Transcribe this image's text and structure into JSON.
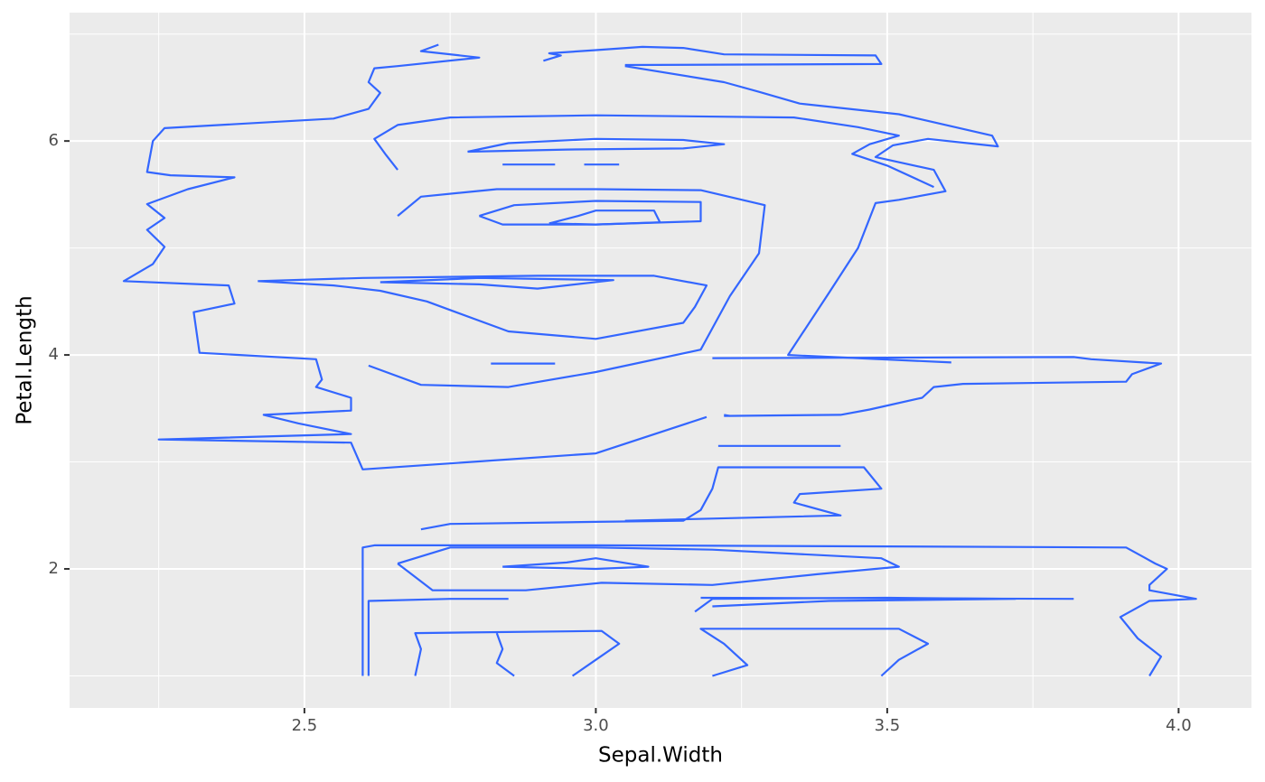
{
  "chart_data": {
    "type": "line",
    "x_label": "Sepal.Width",
    "y_label": "Petal.Length",
    "color": "#3366ff",
    "grid": true,
    "xlim": [
      2.097,
      4.125
    ],
    "ylim": [
      0.7,
      7.2
    ],
    "xticks": [
      2.5,
      {
        "value": 3,
        "label": "3.0"
      },
      3.5,
      {
        "value": 4,
        "label": "4.0"
      }
    ],
    "yticks": [
      2,
      4,
      6
    ],
    "xminor": [
      2.25,
      2.75,
      3.25,
      3.75
    ],
    "yminor": [
      1,
      3,
      5,
      7
    ],
    "series": [
      {
        "x": [
          2.73,
          2.7,
          2.8,
          2.66,
          2.62,
          2.61,
          2.63,
          2.61,
          2.55,
          2.26,
          2.24,
          2.23,
          2.27,
          2.38,
          2.3,
          2.23,
          2.26,
          2.23,
          2.26,
          2.24,
          2.19,
          2.37,
          2.38,
          2.31,
          2.32,
          2.52,
          2.53,
          2.52,
          2.58,
          2.58,
          2.43,
          2.49,
          2.58,
          2.25,
          2.58,
          2.6,
          3.0,
          3.19
        ],
        "values": [
          6.9,
          6.84,
          6.78,
          6.7,
          6.68,
          6.55,
          6.45,
          6.3,
          6.21,
          6.12,
          6.0,
          5.71,
          5.68,
          5.66,
          5.55,
          5.41,
          5.28,
          5.17,
          5.01,
          4.85,
          4.69,
          4.65,
          4.48,
          4.4,
          4.02,
          3.96,
          3.77,
          3.7,
          3.6,
          3.48,
          3.44,
          3.36,
          3.26,
          3.21,
          3.18,
          2.93,
          3.08,
          3.42
        ]
      },
      {
        "x": [
          3.2,
          3.82,
          3.85,
          3.97,
          3.92,
          3.91,
          3.63,
          3.58,
          3.56,
          3.47,
          3.42,
          3.22
        ],
        "values": [
          3.97,
          3.98,
          3.96,
          3.92,
          3.82,
          3.75,
          3.73,
          3.7,
          3.6,
          3.49,
          3.44,
          3.43
        ]
      },
      {
        "x": [
          2.91,
          2.94,
          2.92,
          3.0,
          3.08,
          3.15,
          3.22,
          3.48,
          3.49,
          3.05
        ],
        "values": [
          6.75,
          6.8,
          6.82,
          6.85,
          6.88,
          6.87,
          6.81,
          6.8,
          6.72,
          6.71
        ]
      },
      {
        "x": [
          3.05,
          3.22,
          3.28,
          3.35,
          3.52,
          3.68,
          3.69,
          3.57,
          3.51,
          3.48,
          3.58,
          3.6,
          3.52,
          3.48,
          3.45,
          3.4,
          3.33,
          3.61
        ],
        "values": [
          6.7,
          6.55,
          6.46,
          6.35,
          6.25,
          6.05,
          5.95,
          6.02,
          5.96,
          5.85,
          5.73,
          5.53,
          5.45,
          5.42,
          5.0,
          4.58,
          4.0,
          3.93
        ]
      },
      {
        "x": [
          2.66,
          2.64,
          2.62,
          2.66,
          2.75,
          3.0,
          3.34,
          3.45,
          3.52,
          3.47,
          3.44,
          3.5,
          3.58
        ],
        "values": [
          5.73,
          5.87,
          6.02,
          6.15,
          6.22,
          6.24,
          6.22,
          6.13,
          6.05,
          5.97,
          5.88,
          5.77,
          5.57
        ]
      },
      {
        "x": [
          2.66,
          2.7,
          2.83,
          3.0,
          3.18,
          3.29,
          3.28,
          3.23,
          3.2,
          3.18,
          3.0,
          2.85,
          2.7,
          2.61
        ],
        "values": [
          5.3,
          5.48,
          5.55,
          5.55,
          5.54,
          5.4,
          4.95,
          4.55,
          4.25,
          4.05,
          3.84,
          3.7,
          3.72,
          3.9
        ]
      },
      {
        "x": [
          2.78,
          2.85,
          3.0,
          3.15,
          3.22,
          3.15,
          2.95,
          2.78
        ],
        "values": [
          5.9,
          5.98,
          6.02,
          6.01,
          5.97,
          5.93,
          5.92,
          5.9
        ]
      },
      {
        "x": [
          2.84,
          2.93
        ],
        "values": [
          5.78,
          5.78
        ]
      },
      {
        "x": [
          2.98,
          3.04
        ],
        "values": [
          5.78,
          5.78
        ]
      },
      {
        "x": [
          2.92,
          2.97,
          3.0,
          3.1,
          3.11,
          3.0,
          2.92
        ],
        "values": [
          5.23,
          5.3,
          5.35,
          5.35,
          5.24,
          5.22,
          5.23
        ]
      },
      {
        "x": [
          2.8,
          2.86,
          3.0,
          3.18,
          3.18,
          3.0,
          2.84,
          2.8
        ],
        "values": [
          5.3,
          5.4,
          5.44,
          5.43,
          5.25,
          5.22,
          5.22,
          5.3
        ]
      },
      {
        "x": [
          2.42,
          2.6,
          2.75,
          2.9,
          3.1,
          3.19,
          3.17,
          3.15,
          3.0,
          2.85,
          2.76,
          2.71,
          2.63,
          2.55,
          2.42
        ],
        "values": [
          4.69,
          4.72,
          4.73,
          4.74,
          4.74,
          4.65,
          4.45,
          4.3,
          4.15,
          4.22,
          4.4,
          4.5,
          4.6,
          4.65,
          4.69
        ]
      },
      {
        "x": [
          2.63,
          2.8,
          3.03,
          2.9,
          2.8,
          2.63
        ],
        "values": [
          4.68,
          4.72,
          4.7,
          4.62,
          4.66,
          4.68
        ]
      },
      {
        "x": [
          2.82,
          2.93
        ],
        "values": [
          3.92,
          3.92
        ]
      },
      {
        "x": [
          3.22,
          3.23
        ],
        "values": [
          3.44,
          3.43
        ]
      },
      {
        "x": [
          3.21,
          3.42
        ],
        "values": [
          3.15,
          3.15
        ]
      },
      {
        "x": [
          2.6,
          2.6,
          2.62,
          3.0,
          3.5,
          3.91,
          3.96,
          3.98,
          3.95,
          3.95,
          4.03,
          3.95,
          3.9,
          3.93,
          3.97,
          3.95
        ],
        "values": [
          1.0,
          2.2,
          2.22,
          2.22,
          2.21,
          2.2,
          2.05,
          2.0,
          1.85,
          1.8,
          1.72,
          1.7,
          1.55,
          1.35,
          1.18,
          1.0
        ]
      },
      {
        "x": [
          2.61,
          2.61,
          2.75,
          2.85
        ],
        "values": [
          1.0,
          1.7,
          1.72,
          1.72
        ]
      },
      {
        "x": [
          2.69,
          2.7,
          2.69,
          3.01,
          3.04,
          3.0,
          2.96
        ],
        "values": [
          1.0,
          1.25,
          1.4,
          1.42,
          1.3,
          1.15,
          1.0
        ]
      },
      {
        "x": [
          2.86,
          2.83,
          2.84,
          2.83
        ],
        "values": [
          1.0,
          1.12,
          1.25,
          1.4
        ]
      },
      {
        "x": [
          3.2,
          3.26,
          3.22,
          3.18,
          3.52,
          3.57,
          3.52,
          3.49
        ],
        "values": [
          1.0,
          1.1,
          1.3,
          1.44,
          1.44,
          1.3,
          1.15,
          1.0
        ]
      },
      {
        "x": [
          3.17,
          3.2,
          3.5,
          3.72,
          3.4,
          3.2
        ],
        "values": [
          1.6,
          1.72,
          1.73,
          1.72,
          1.7,
          1.65
        ]
      },
      {
        "x": [
          2.66,
          2.75,
          3.0,
          3.2,
          3.49,
          3.52,
          3.38,
          3.2,
          3.01,
          2.88,
          2.72,
          2.66
        ],
        "values": [
          2.05,
          2.2,
          2.2,
          2.18,
          2.1,
          2.02,
          1.95,
          1.85,
          1.87,
          1.8,
          1.8,
          2.05
        ]
      },
      {
        "x": [
          2.84,
          2.95,
          3.0,
          3.09,
          3.0,
          2.84
        ],
        "values": [
          2.02,
          2.06,
          2.1,
          2.02,
          2.0,
          2.02
        ]
      },
      {
        "x": [
          2.7,
          2.75,
          3.0,
          3.15,
          3.18,
          3.2,
          3.21,
          3.46,
          3.49,
          3.35,
          3.34,
          3.42,
          3.05
        ],
        "values": [
          2.37,
          2.42,
          2.44,
          2.45,
          2.55,
          2.75,
          2.95,
          2.95,
          2.75,
          2.7,
          2.62,
          2.5,
          2.45
        ]
      },
      {
        "x": [
          3.18,
          3.82
        ],
        "values": [
          1.73,
          1.72
        ]
      }
    ]
  }
}
